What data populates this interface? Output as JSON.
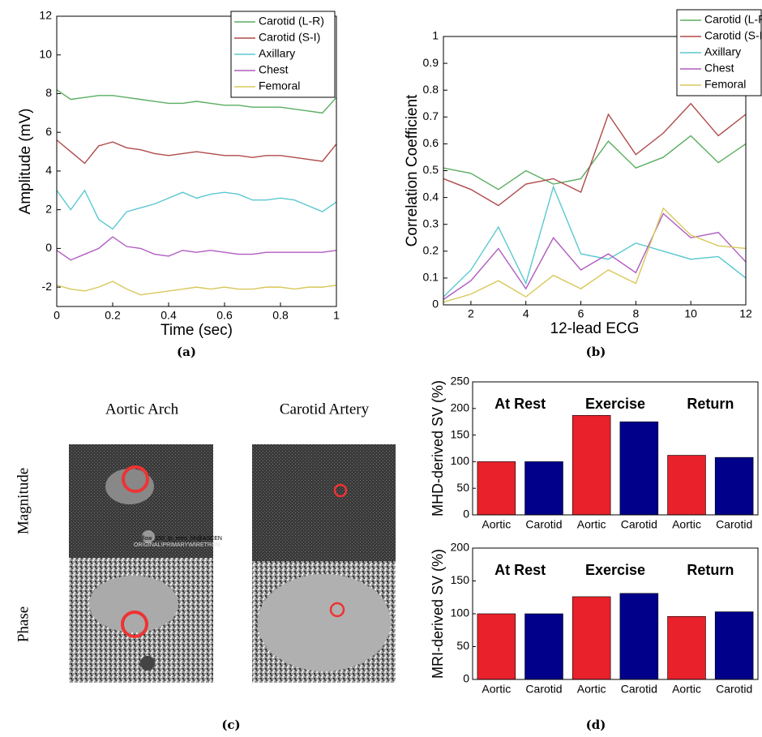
{
  "chart_data": [
    {
      "type": "line",
      "xlabel": "Time (sec)",
      "ylabel": "Amplitude (mV)",
      "xlim": [
        0,
        1
      ],
      "ylim": [
        -3,
        12
      ],
      "xticks": [
        0,
        0.2,
        0.4,
        0.6,
        0.8,
        1
      ],
      "yticks": [
        -2,
        0,
        2,
        4,
        6,
        8,
        10,
        12
      ],
      "legend": "upper right",
      "x": [
        0,
        0.05,
        0.1,
        0.15,
        0.2,
        0.25,
        0.3,
        0.35,
        0.4,
        0.45,
        0.5,
        0.55,
        0.6,
        0.65,
        0.7,
        0.75,
        0.8,
        0.85,
        0.9,
        0.95,
        1
      ],
      "series": [
        {
          "name": "Carotid (L-R)",
          "color": "#5aae61",
          "values": [
            8.2,
            7.7,
            7.8,
            7.9,
            7.9,
            7.8,
            7.7,
            7.6,
            7.5,
            7.5,
            7.6,
            7.5,
            7.4,
            7.4,
            7.3,
            7.3,
            7.3,
            7.2,
            7.1,
            7.0,
            7.8
          ]
        },
        {
          "name": "Carotid (S-I)",
          "color": "#b04a4a",
          "values": [
            5.6,
            5.0,
            4.4,
            5.3,
            5.5,
            5.2,
            5.1,
            4.9,
            4.8,
            4.9,
            5.0,
            4.9,
            4.8,
            4.8,
            4.7,
            4.8,
            4.8,
            4.7,
            4.6,
            4.5,
            5.4
          ]
        },
        {
          "name": "Axillary",
          "color": "#5bc8d0",
          "values": [
            3.0,
            2.0,
            3.0,
            1.5,
            1.0,
            1.9,
            2.1,
            2.3,
            2.6,
            2.9,
            2.6,
            2.8,
            2.9,
            2.8,
            2.5,
            2.5,
            2.6,
            2.5,
            2.2,
            1.9,
            2.4
          ]
        },
        {
          "name": "Chest",
          "color": "#b05cc0",
          "values": [
            -0.1,
            -0.6,
            -0.3,
            0.0,
            0.6,
            0.1,
            0.0,
            -0.3,
            -0.4,
            -0.1,
            -0.2,
            -0.1,
            -0.2,
            -0.3,
            -0.3,
            -0.2,
            -0.2,
            -0.2,
            -0.2,
            -0.2,
            -0.1
          ]
        },
        {
          "name": "Femoral",
          "color": "#d8c85a",
          "values": [
            -1.9,
            -2.1,
            -2.2,
            -2.0,
            -1.7,
            -2.1,
            -2.4,
            -2.3,
            -2.2,
            -2.1,
            -2.0,
            -2.1,
            -2.0,
            -2.1,
            -2.1,
            -2.0,
            -2.0,
            -2.1,
            -2.0,
            -2.0,
            -1.9
          ]
        }
      ]
    },
    {
      "type": "line",
      "xlabel": "12-lead ECG",
      "ylabel": "Correlation Coefficient",
      "xlim": [
        1,
        12
      ],
      "ylim": [
        0,
        1
      ],
      "xticks": [
        2,
        4,
        6,
        8,
        10,
        12
      ],
      "yticks": [
        0,
        0.1,
        0.2,
        0.3,
        0.4,
        0.5,
        0.6,
        0.7,
        0.8,
        0.9,
        1
      ],
      "legend": "upper right",
      "x": [
        1,
        2,
        3,
        4,
        5,
        6,
        7,
        8,
        9,
        10,
        11,
        12
      ],
      "series": [
        {
          "name": "Carotid (L-R",
          "color": "#5aae61",
          "values": [
            0.51,
            0.49,
            0.43,
            0.5,
            0.45,
            0.47,
            0.61,
            0.51,
            0.55,
            0.63,
            0.53,
            0.6
          ]
        },
        {
          "name": "Carotid (S-I",
          "color": "#b04a4a",
          "values": [
            0.47,
            0.43,
            0.37,
            0.45,
            0.47,
            0.42,
            0.71,
            0.56,
            0.64,
            0.75,
            0.63,
            0.71
          ]
        },
        {
          "name": "Axillary",
          "color": "#5bc8d0",
          "values": [
            0.03,
            0.13,
            0.29,
            0.08,
            0.44,
            0.19,
            0.17,
            0.23,
            0.2,
            0.17,
            0.18,
            0.1
          ]
        },
        {
          "name": "Chest",
          "color": "#b05cc0",
          "values": [
            0.02,
            0.09,
            0.21,
            0.06,
            0.25,
            0.13,
            0.19,
            0.12,
            0.34,
            0.25,
            0.27,
            0.16
          ]
        },
        {
          "name": "Femoral",
          "color": "#d8c85a",
          "values": [
            0.01,
            0.04,
            0.09,
            0.03,
            0.11,
            0.06,
            0.13,
            0.08,
            0.36,
            0.26,
            0.22,
            0.21
          ]
        }
      ]
    },
    {
      "type": "bar",
      "ylabel": "MHD-derived SV (%)",
      "ylim": [
        0,
        250
      ],
      "yticks": [
        0,
        50,
        100,
        150,
        200,
        250
      ],
      "categories": [
        "Aortic",
        "Carotid",
        "Aortic",
        "Carotid",
        "Aortic",
        "Carotid"
      ],
      "values": [
        100,
        100,
        187,
        175,
        112,
        108
      ],
      "colors": [
        "#e8212b",
        "#00008b",
        "#e8212b",
        "#00008b",
        "#e8212b",
        "#00008b"
      ],
      "annotations": [
        "At Rest",
        "Exercise",
        "Return"
      ]
    },
    {
      "type": "bar",
      "ylabel": "MRI-derived SV (%)",
      "ylim": [
        0,
        200
      ],
      "yticks": [
        0,
        50,
        100,
        150,
        200
      ],
      "categories": [
        "Aortic",
        "Carotid",
        "Aortic",
        "Carotid",
        "Aortic",
        "Carotid"
      ],
      "values": [
        100,
        100,
        126,
        131,
        96,
        103
      ],
      "colors": [
        "#e8212b",
        "#00008b",
        "#e8212b",
        "#00008b",
        "#e8212b",
        "#00008b"
      ],
      "annotations": [
        "At Rest",
        "Exercise",
        "Return"
      ]
    }
  ],
  "panel_c": {
    "columns": [
      "Aortic Arch",
      "Carotid Artery"
    ],
    "rows": [
      "Magnitude",
      "Phase"
    ],
    "image_text": [
      "flow_150_tp_retro_bh@ASCEN",
      "ORIGINAL\\PRIMARY\\M\\RETRON"
    ]
  },
  "captions": [
    "(a)",
    "(b)",
    "(c)",
    "(d)"
  ]
}
